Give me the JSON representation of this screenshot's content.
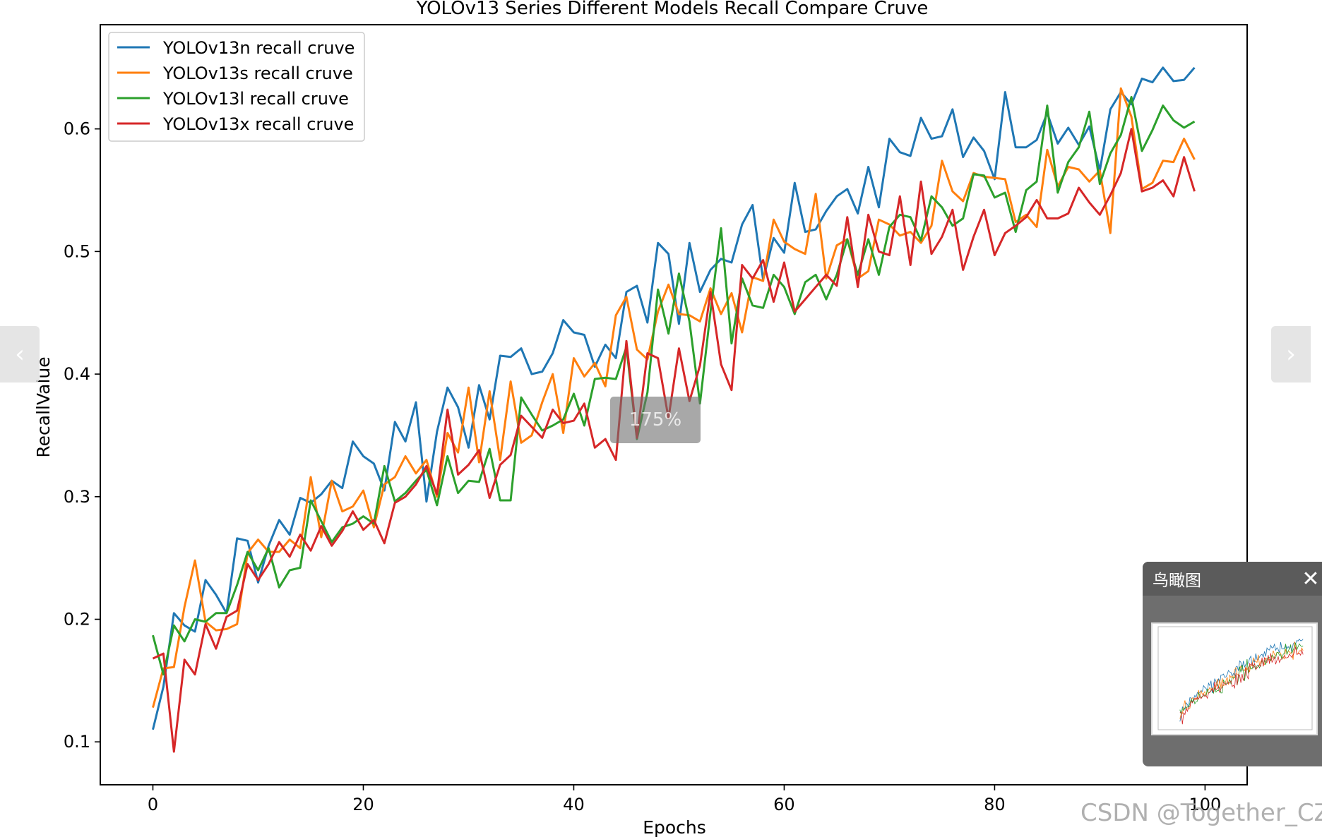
{
  "chart_data": {
    "type": "line",
    "title": "YOLOv13 Series Different Models Recall Compare Cruve",
    "xlabel": "Epochs",
    "ylabel": "RecallValue",
    "xlim": [
      -5,
      104
    ],
    "ylim": [
      0.065,
      0.685
    ],
    "xticks": [
      0,
      20,
      40,
      60,
      80,
      100
    ],
    "yticks": [
      0.1,
      0.2,
      0.3,
      0.4,
      0.5,
      0.6
    ],
    "grid": false,
    "legend_position": "top-left",
    "x": [
      0,
      1,
      2,
      3,
      4,
      5,
      6,
      7,
      8,
      9,
      10,
      11,
      12,
      13,
      14,
      15,
      16,
      17,
      18,
      19,
      20,
      21,
      22,
      23,
      24,
      25,
      26,
      27,
      28,
      29,
      30,
      31,
      32,
      33,
      34,
      35,
      36,
      37,
      38,
      39,
      40,
      41,
      42,
      43,
      44,
      45,
      46,
      47,
      48,
      49,
      50,
      51,
      52,
      53,
      54,
      55,
      56,
      57,
      58,
      59,
      60,
      61,
      62,
      63,
      64,
      65,
      66,
      67,
      68,
      69,
      70,
      71,
      72,
      73,
      74,
      75,
      76,
      77,
      78,
      79,
      80,
      81,
      82,
      83,
      84,
      85,
      86,
      87,
      88,
      89,
      90,
      91,
      92,
      93,
      94,
      95,
      96,
      97,
      98,
      99
    ],
    "series": [
      {
        "name": "YOLOv13n recall cruve",
        "color": "#1f77b4",
        "values": [
          0.11,
          0.145,
          0.205,
          0.195,
          0.19,
          0.232,
          0.22,
          0.205,
          0.266,
          0.264,
          0.23,
          0.26,
          0.281,
          0.269,
          0.299,
          0.295,
          0.302,
          0.313,
          0.307,
          0.345,
          0.333,
          0.327,
          0.305,
          0.361,
          0.345,
          0.377,
          0.296,
          0.353,
          0.389,
          0.373,
          0.34,
          0.391,
          0.363,
          0.415,
          0.414,
          0.421,
          0.4,
          0.402,
          0.417,
          0.444,
          0.434,
          0.432,
          0.406,
          0.424,
          0.413,
          0.467,
          0.472,
          0.442,
          0.507,
          0.498,
          0.441,
          0.507,
          0.467,
          0.485,
          0.494,
          0.491,
          0.522,
          0.538,
          0.477,
          0.511,
          0.499,
          0.556,
          0.516,
          0.518,
          0.533,
          0.545,
          0.551,
          0.531,
          0.569,
          0.536,
          0.592,
          0.581,
          0.578,
          0.609,
          0.592,
          0.594,
          0.616,
          0.577,
          0.593,
          0.582,
          0.559,
          0.63,
          0.585,
          0.585,
          0.591,
          0.613,
          0.588,
          0.601,
          0.587,
          0.602,
          0.566,
          0.616,
          0.63,
          0.62,
          0.641,
          0.638,
          0.65,
          0.639,
          0.64,
          0.65
        ]
      },
      {
        "name": "YOLOv13s recall cruve",
        "color": "#ff7f0e",
        "values": [
          0.128,
          0.16,
          0.161,
          0.21,
          0.248,
          0.198,
          0.191,
          0.192,
          0.196,
          0.254,
          0.265,
          0.255,
          0.255,
          0.265,
          0.258,
          0.316,
          0.267,
          0.313,
          0.288,
          0.292,
          0.305,
          0.275,
          0.31,
          0.316,
          0.333,
          0.319,
          0.33,
          0.3,
          0.352,
          0.336,
          0.389,
          0.328,
          0.386,
          0.33,
          0.394,
          0.344,
          0.35,
          0.377,
          0.4,
          0.352,
          0.413,
          0.398,
          0.409,
          0.39,
          0.448,
          0.463,
          0.42,
          0.412,
          0.451,
          0.473,
          0.449,
          0.448,
          0.443,
          0.47,
          0.449,
          0.466,
          0.434,
          0.479,
          0.476,
          0.526,
          0.508,
          0.502,
          0.498,
          0.547,
          0.478,
          0.505,
          0.51,
          0.478,
          0.484,
          0.526,
          0.522,
          0.513,
          0.516,
          0.507,
          0.521,
          0.574,
          0.549,
          0.541,
          0.564,
          0.561,
          0.56,
          0.559,
          0.524,
          0.53,
          0.52,
          0.583,
          0.553,
          0.569,
          0.567,
          0.557,
          0.566,
          0.515,
          0.633,
          0.61,
          0.551,
          0.556,
          0.574,
          0.573,
          0.592,
          0.575
        ]
      },
      {
        "name": "YOLOv13l recall cruve",
        "color": "#2ca02c",
        "values": [
          0.187,
          0.155,
          0.195,
          0.182,
          0.2,
          0.198,
          0.205,
          0.205,
          0.228,
          0.255,
          0.24,
          0.258,
          0.226,
          0.24,
          0.242,
          0.297,
          0.28,
          0.263,
          0.275,
          0.278,
          0.284,
          0.278,
          0.325,
          0.296,
          0.303,
          0.313,
          0.322,
          0.293,
          0.333,
          0.303,
          0.313,
          0.312,
          0.339,
          0.297,
          0.297,
          0.381,
          0.367,
          0.354,
          0.358,
          0.363,
          0.384,
          0.358,
          0.396,
          0.397,
          0.396,
          0.422,
          0.347,
          0.385,
          0.469,
          0.433,
          0.482,
          0.443,
          0.376,
          0.451,
          0.519,
          0.425,
          0.478,
          0.456,
          0.454,
          0.481,
          0.471,
          0.449,
          0.475,
          0.481,
          0.461,
          0.481,
          0.51,
          0.481,
          0.51,
          0.481,
          0.52,
          0.53,
          0.528,
          0.509,
          0.545,
          0.536,
          0.521,
          0.527,
          0.563,
          0.562,
          0.544,
          0.548,
          0.516,
          0.55,
          0.557,
          0.619,
          0.548,
          0.573,
          0.585,
          0.614,
          0.555,
          0.58,
          0.595,
          0.626,
          0.582,
          0.599,
          0.619,
          0.607,
          0.601,
          0.606
        ]
      },
      {
        "name": "YOLOv13x recall cruve",
        "color": "#d62728",
        "values": [
          0.168,
          0.172,
          0.092,
          0.167,
          0.155,
          0.196,
          0.176,
          0.202,
          0.207,
          0.245,
          0.232,
          0.245,
          0.263,
          0.251,
          0.269,
          0.256,
          0.276,
          0.26,
          0.272,
          0.288,
          0.273,
          0.281,
          0.262,
          0.295,
          0.3,
          0.31,
          0.325,
          0.302,
          0.371,
          0.318,
          0.326,
          0.338,
          0.299,
          0.326,
          0.334,
          0.366,
          0.357,
          0.348,
          0.371,
          0.36,
          0.362,
          0.376,
          0.34,
          0.347,
          0.33,
          0.427,
          0.348,
          0.417,
          0.413,
          0.364,
          0.421,
          0.378,
          0.407,
          0.467,
          0.408,
          0.387,
          0.489,
          0.478,
          0.493,
          0.459,
          0.491,
          0.451,
          0.461,
          0.471,
          0.481,
          0.472,
          0.528,
          0.471,
          0.53,
          0.5,
          0.497,
          0.545,
          0.489,
          0.557,
          0.498,
          0.512,
          0.534,
          0.485,
          0.512,
          0.534,
          0.497,
          0.515,
          0.521,
          0.528,
          0.542,
          0.527,
          0.527,
          0.531,
          0.552,
          0.54,
          0.53,
          0.546,
          0.564,
          0.6,
          0.549,
          0.552,
          0.558,
          0.545,
          0.577,
          0.549
        ]
      }
    ]
  },
  "ui": {
    "prev_arrow": "‹",
    "next_arrow": "›",
    "zoom_level": "175%",
    "overview_title": "鸟瞰图",
    "overview_close": "✕",
    "watermark": "CSDN @Together_CZ"
  }
}
